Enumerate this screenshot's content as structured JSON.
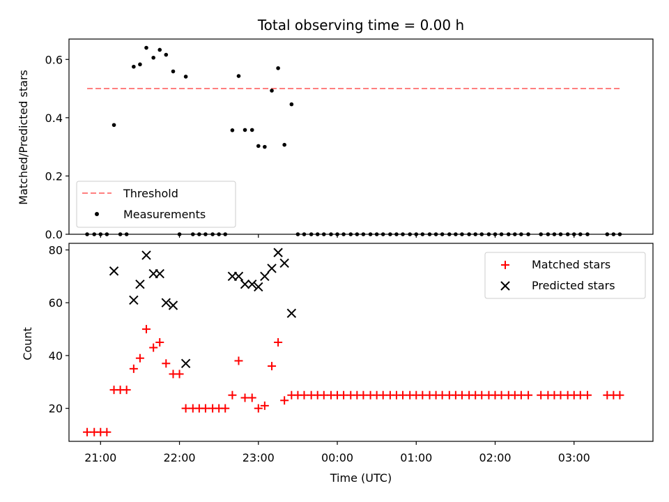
{
  "chart_data": {
    "title": "Total observing time = 0.00 h",
    "xlabel": "Time (UTC)",
    "x_ticks": [
      "21:00",
      "22:00",
      "23:00",
      "00:00",
      "01:00",
      "02:00",
      "03:00"
    ],
    "x_tick_hours": [
      21,
      22,
      23,
      24,
      25,
      26,
      27
    ],
    "xlim_hours": [
      20.6,
      28.0
    ],
    "grid": false,
    "panels": [
      {
        "type": "scatter",
        "ylabel": "Matched/Predicted stars",
        "ylim": [
          0,
          0.67
        ],
        "y_ticks": [
          0.0,
          0.2,
          0.4,
          0.6
        ],
        "y_tick_labels": [
          "0.0",
          "0.2",
          "0.4",
          "0.6"
        ],
        "legend_position": "lower-left",
        "series": [
          {
            "name": "Threshold",
            "kind": "line",
            "style": "dashed",
            "color": "#ff7f7f",
            "x": [
              20.83,
              27.58
            ],
            "y": [
              0.5,
              0.5
            ]
          },
          {
            "name": "Measurements",
            "kind": "points",
            "marker": "dot",
            "color": "#000000",
            "points": [
              [
                20.83,
                0
              ],
              [
                20.92,
                0
              ],
              [
                21.0,
                0
              ],
              [
                21.08,
                0
              ],
              [
                21.17,
                0.375
              ],
              [
                21.25,
                0
              ],
              [
                21.33,
                0
              ],
              [
                21.42,
                0.575
              ],
              [
                21.5,
                0.583
              ],
              [
                21.58,
                0.64
              ],
              [
                21.67,
                0.606
              ],
              [
                21.75,
                0.633
              ],
              [
                21.83,
                0.616
              ],
              [
                21.92,
                0.559
              ],
              [
                22.0,
                0
              ],
              [
                22.08,
                0.541
              ],
              [
                22.17,
                0
              ],
              [
                22.25,
                0
              ],
              [
                22.33,
                0
              ],
              [
                22.42,
                0
              ],
              [
                22.5,
                0
              ],
              [
                22.58,
                0
              ],
              [
                22.67,
                0.357
              ],
              [
                22.75,
                0.543
              ],
              [
                22.83,
                0.358
              ],
              [
                22.92,
                0.358
              ],
              [
                23.0,
                0.303
              ],
              [
                23.08,
                0.3
              ],
              [
                23.17,
                0.493
              ],
              [
                23.25,
                0.57
              ],
              [
                23.33,
                0.307
              ],
              [
                23.42,
                0.446
              ],
              [
                23.5,
                0
              ],
              [
                23.58,
                0
              ],
              [
                23.67,
                0
              ],
              [
                23.75,
                0
              ],
              [
                23.83,
                0
              ],
              [
                23.92,
                0
              ],
              [
                24.0,
                0
              ],
              [
                24.08,
                0
              ],
              [
                24.17,
                0
              ],
              [
                24.25,
                0
              ],
              [
                24.33,
                0
              ],
              [
                24.42,
                0
              ],
              [
                24.5,
                0
              ],
              [
                24.58,
                0
              ],
              [
                24.67,
                0
              ],
              [
                24.75,
                0
              ],
              [
                24.83,
                0
              ],
              [
                24.92,
                0
              ],
              [
                25.0,
                0
              ],
              [
                25.08,
                0
              ],
              [
                25.17,
                0
              ],
              [
                25.25,
                0
              ],
              [
                25.33,
                0
              ],
              [
                25.42,
                0
              ],
              [
                25.5,
                0
              ],
              [
                25.58,
                0
              ],
              [
                25.67,
                0
              ],
              [
                25.75,
                0
              ],
              [
                25.83,
                0
              ],
              [
                25.92,
                0
              ],
              [
                26.0,
                0
              ],
              [
                26.08,
                0
              ],
              [
                26.17,
                0
              ],
              [
                26.25,
                0
              ],
              [
                26.33,
                0
              ],
              [
                26.42,
                0
              ],
              [
                26.58,
                0
              ],
              [
                26.67,
                0
              ],
              [
                26.75,
                0
              ],
              [
                26.83,
                0
              ],
              [
                26.92,
                0
              ],
              [
                27.0,
                0
              ],
              [
                27.08,
                0
              ],
              [
                27.17,
                0
              ],
              [
                27.42,
                0
              ],
              [
                27.5,
                0
              ],
              [
                27.58,
                0
              ]
            ]
          }
        ]
      },
      {
        "type": "scatter",
        "ylabel": "Count",
        "ylim": [
          7.5,
          82.5
        ],
        "y_ticks": [
          20,
          40,
          60,
          80
        ],
        "y_tick_labels": [
          "20",
          "40",
          "60",
          "80"
        ],
        "legend_position": "upper-right",
        "series": [
          {
            "name": "Matched stars",
            "kind": "points",
            "marker": "plus",
            "color": "#ff0000",
            "points": [
              [
                20.83,
                11
              ],
              [
                20.92,
                11
              ],
              [
                21.0,
                11
              ],
              [
                21.08,
                11
              ],
              [
                21.17,
                27
              ],
              [
                21.25,
                27
              ],
              [
                21.33,
                27
              ],
              [
                21.42,
                35
              ],
              [
                21.5,
                39
              ],
              [
                21.58,
                50
              ],
              [
                21.67,
                43
              ],
              [
                21.75,
                45
              ],
              [
                21.83,
                37
              ],
              [
                21.92,
                33
              ],
              [
                22.0,
                33
              ],
              [
                22.08,
                20
              ],
              [
                22.17,
                20
              ],
              [
                22.25,
                20
              ],
              [
                22.33,
                20
              ],
              [
                22.42,
                20
              ],
              [
                22.5,
                20
              ],
              [
                22.58,
                20
              ],
              [
                22.67,
                25
              ],
              [
                22.75,
                38
              ],
              [
                22.83,
                24
              ],
              [
                22.92,
                24
              ],
              [
                23.0,
                20
              ],
              [
                23.08,
                21
              ],
              [
                23.17,
                36
              ],
              [
                23.25,
                45
              ],
              [
                23.33,
                23
              ],
              [
                23.42,
                25
              ],
              [
                23.5,
                25
              ],
              [
                23.58,
                25
              ],
              [
                23.67,
                25
              ],
              [
                23.75,
                25
              ],
              [
                23.83,
                25
              ],
              [
                23.92,
                25
              ],
              [
                24.0,
                25
              ],
              [
                24.08,
                25
              ],
              [
                24.17,
                25
              ],
              [
                24.25,
                25
              ],
              [
                24.33,
                25
              ],
              [
                24.42,
                25
              ],
              [
                24.5,
                25
              ],
              [
                24.58,
                25
              ],
              [
                24.67,
                25
              ],
              [
                24.75,
                25
              ],
              [
                24.83,
                25
              ],
              [
                24.92,
                25
              ],
              [
                25.0,
                25
              ],
              [
                25.08,
                25
              ],
              [
                25.17,
                25
              ],
              [
                25.25,
                25
              ],
              [
                25.33,
                25
              ],
              [
                25.42,
                25
              ],
              [
                25.5,
                25
              ],
              [
                25.58,
                25
              ],
              [
                25.67,
                25
              ],
              [
                25.75,
                25
              ],
              [
                25.83,
                25
              ],
              [
                25.92,
                25
              ],
              [
                26.0,
                25
              ],
              [
                26.08,
                25
              ],
              [
                26.17,
                25
              ],
              [
                26.25,
                25
              ],
              [
                26.33,
                25
              ],
              [
                26.42,
                25
              ],
              [
                26.58,
                25
              ],
              [
                26.67,
                25
              ],
              [
                26.75,
                25
              ],
              [
                26.83,
                25
              ],
              [
                26.92,
                25
              ],
              [
                27.0,
                25
              ],
              [
                27.08,
                25
              ],
              [
                27.17,
                25
              ],
              [
                27.42,
                25
              ],
              [
                27.5,
                25
              ],
              [
                27.58,
                25
              ]
            ]
          },
          {
            "name": "Predicted stars",
            "kind": "points",
            "marker": "x",
            "color": "#000000",
            "points": [
              [
                21.17,
                72
              ],
              [
                21.42,
                61
              ],
              [
                21.5,
                67
              ],
              [
                21.58,
                78
              ],
              [
                21.67,
                71
              ],
              [
                21.75,
                71
              ],
              [
                21.83,
                60
              ],
              [
                21.92,
                59
              ],
              [
                22.08,
                37
              ],
              [
                22.67,
                70
              ],
              [
                22.75,
                70
              ],
              [
                22.83,
                67
              ],
              [
                22.92,
                67
              ],
              [
                23.0,
                66
              ],
              [
                23.08,
                70
              ],
              [
                23.17,
                73
              ],
              [
                23.25,
                79
              ],
              [
                23.33,
                75
              ],
              [
                23.42,
                56
              ]
            ]
          }
        ]
      }
    ]
  }
}
